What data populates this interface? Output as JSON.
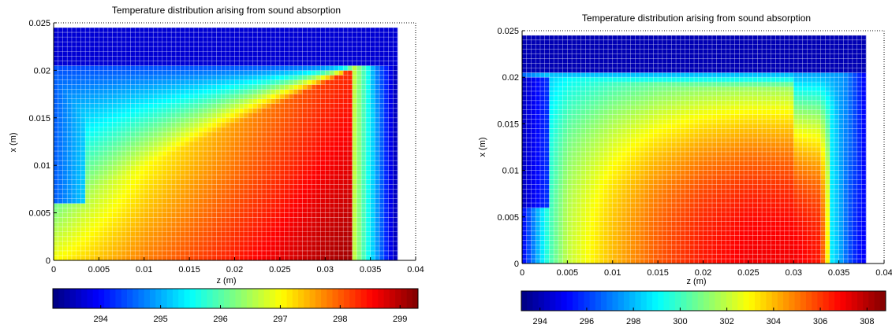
{
  "chart_data": [
    {
      "type": "heatmap",
      "title": "Temperature distribution arising from sound absorption",
      "xlabel": "z (m)",
      "ylabel": "x (m)",
      "xlim": [
        0,
        0.04
      ],
      "ylim": [
        0,
        0.025
      ],
      "x_ticks": [
        "0",
        "0.005",
        "0.01",
        "0.015",
        "0.02",
        "0.025",
        "0.03",
        "0.035",
        "0.04"
      ],
      "y_ticks": [
        "0",
        "0.005",
        "0.01",
        "0.015",
        "0.02",
        "0.025"
      ],
      "domain_z_max": 0.038,
      "domain_x_max": 0.0245,
      "colormap": "jet",
      "colorbar_range": [
        293.2,
        299.3
      ],
      "colorbar_ticks": [
        "294",
        "295",
        "296",
        "297",
        "298",
        "299"
      ],
      "field_profile": {
        "z": [
          0,
          0.005,
          0.01,
          0.015,
          0.02,
          0.025,
          0.03,
          0.033,
          0.034,
          0.035,
          0.036,
          0.037,
          0.038
        ],
        "temperature_at_x_0": [
          297.0,
          297.4,
          297.8,
          298.1,
          298.4,
          298.7,
          299.0,
          299.1,
          297.5,
          296.0,
          295.3,
          294.8,
          294.6
        ]
      },
      "grid": true
    },
    {
      "type": "heatmap",
      "title": "Temperature distribution arising from sound absorption",
      "xlabel": "z (m)",
      "ylabel": "x (m)",
      "xlim": [
        0,
        0.04
      ],
      "ylim": [
        0,
        0.025
      ],
      "x_ticks": [
        "0",
        "0.005",
        "0.01",
        "0.015",
        "0.02",
        "0.025",
        "0.03",
        "0.035",
        "0.04"
      ],
      "y_ticks": [
        "0",
        "0.005",
        "0.01",
        "0.015",
        "0.02",
        "0.025"
      ],
      "domain_z_max": 0.038,
      "domain_x_max": 0.0245,
      "colormap": "jet",
      "colorbar_range": [
        293.2,
        308.8
      ],
      "colorbar_ticks": [
        "294",
        "296",
        "298",
        "300",
        "302",
        "304",
        "306",
        "308"
      ],
      "field_profile": {
        "z": [
          0,
          0.003,
          0.005,
          0.01,
          0.015,
          0.02,
          0.025,
          0.03,
          0.033,
          0.034,
          0.035,
          0.036,
          0.037,
          0.038
        ],
        "temperature_at_x_0": [
          295.0,
          300.0,
          302.0,
          304.0,
          305.5,
          306.5,
          307.0,
          307.0,
          306.5,
          302.0,
          298.0,
          296.5,
          295.5,
          295.0
        ]
      },
      "grid": true
    }
  ]
}
